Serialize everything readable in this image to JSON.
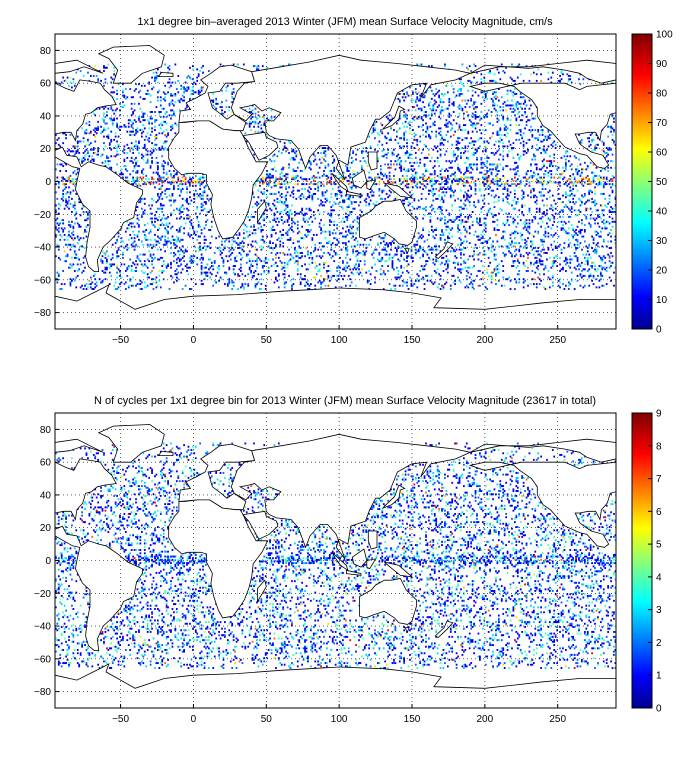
{
  "figure": {
    "panels": [
      {
        "title": "1x1 degree bin–averaged 2013 Winter (JFM) mean Surface Velocity Magnitude, cm/s",
        "colorbar": {
          "ticks": [
            "0",
            "10",
            "20",
            "30",
            "40",
            "50",
            "60",
            "70",
            "80",
            "90",
            "100"
          ],
          "min": 0,
          "max": 100
        },
        "x_ticks": [
          "−50",
          "0",
          "50",
          "100",
          "150",
          "200",
          "250"
        ],
        "y_ticks": [
          "80",
          "60",
          "40",
          "20",
          "0",
          "−20",
          "−40",
          "−60",
          "−80"
        ],
        "x_range": [
          -95,
          290
        ],
        "y_range": [
          -90,
          90
        ]
      },
      {
        "title": "N of cycles per 1x1 degree bin for 2013 Winter (JFM) mean Surface Velocity Magnitude (23617 in total)",
        "colorbar": {
          "ticks": [
            "0",
            "1",
            "2",
            "3",
            "4",
            "5",
            "6",
            "7",
            "8",
            "9"
          ],
          "min": 0,
          "max": 9
        },
        "x_ticks": [
          "−50",
          "0",
          "50",
          "100",
          "150",
          "200",
          "250"
        ],
        "y_ticks": [
          "80",
          "60",
          "40",
          "20",
          "0",
          "−20",
          "−40",
          "−60",
          "−80"
        ],
        "x_range": [
          -95,
          290
        ],
        "y_range": [
          -90,
          90
        ]
      }
    ],
    "colormap": "jet",
    "grid": "dotted",
    "colors": {
      "frame": "#000000",
      "coastline": "#000000",
      "grid": "#000000"
    }
  }
}
